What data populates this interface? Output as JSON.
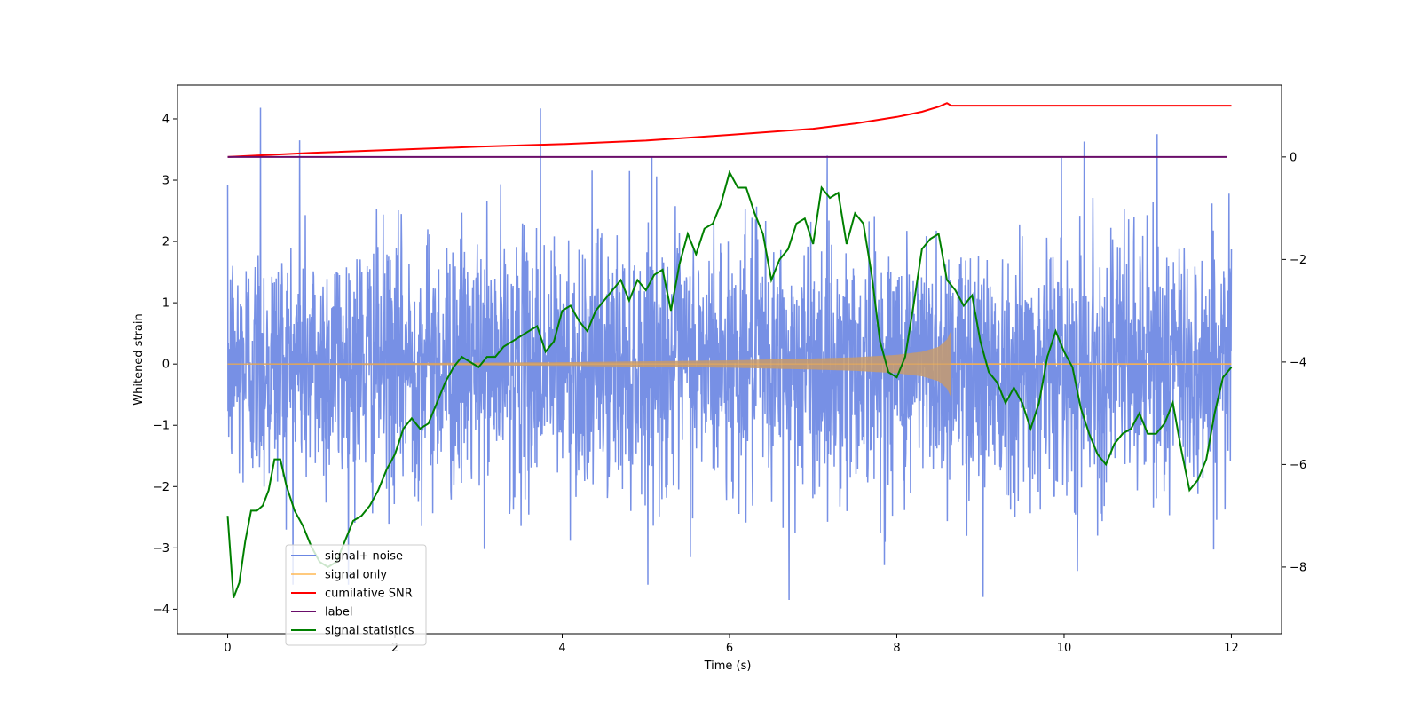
{
  "chart_data": {
    "type": "line",
    "xlabel": "Time (s)",
    "ylabel_left": "Whitened strain",
    "ylabel_right": "",
    "xlim": [
      -0.6,
      12.6
    ],
    "ylim_left": [
      -4.4,
      4.55
    ],
    "ylim_right": [
      -9.3,
      1.4
    ],
    "x_ticks": [
      0,
      2,
      4,
      6,
      8,
      10,
      12
    ],
    "y_ticks_left": [
      -4,
      -3,
      -2,
      -1,
      0,
      1,
      2,
      3,
      4
    ],
    "y_ticks_right": [
      -8,
      -6,
      -4,
      -2,
      0
    ],
    "grid": false,
    "legend_position": "lower-left",
    "series": [
      {
        "name": "signal+ noise",
        "axis": "left",
        "color": "#6b87e3",
        "description_range": [
          -3.9,
          4.2
        ],
        "x_range": [
          0,
          12
        ],
        "notable_peaks": [
          {
            "x": 0.39,
            "y": 4.18
          },
          {
            "x": 0.86,
            "y": 3.65
          },
          {
            "x": 3.74,
            "y": 4.17
          },
          {
            "x": 5.07,
            "y": 3.38
          },
          {
            "x": 6.71,
            "y": -3.85
          },
          {
            "x": 9.03,
            "y": -3.8
          },
          {
            "x": 11.11,
            "y": 3.75
          },
          {
            "x": 10.24,
            "y": 3.63
          }
        ]
      },
      {
        "name": "signal only",
        "axis": "left",
        "color": "#ffb347",
        "x_range": [
          0,
          12
        ],
        "chirp_end_x": 8.65,
        "envelope": [
          [
            0,
            0.01
          ],
          [
            2,
            0.015
          ],
          [
            4,
            0.03
          ],
          [
            5,
            0.045
          ],
          [
            6,
            0.06
          ],
          [
            7,
            0.09
          ],
          [
            7.5,
            0.11
          ],
          [
            8,
            0.15
          ],
          [
            8.3,
            0.2
          ],
          [
            8.5,
            0.28
          ],
          [
            8.6,
            0.4
          ],
          [
            8.65,
            0.55
          ]
        ]
      },
      {
        "name": "cumilative SNR",
        "axis": "right",
        "color": "#ff0000",
        "x": [
          0,
          1,
          2,
          3,
          4,
          5,
          6,
          7,
          7.5,
          8,
          8.3,
          8.5,
          8.6,
          8.65,
          10,
          12
        ],
        "y": [
          0.0,
          0.08,
          0.14,
          0.2,
          0.25,
          0.32,
          0.43,
          0.55,
          0.65,
          0.78,
          0.88,
          0.98,
          1.05,
          1.0,
          1.0,
          1.0
        ]
      },
      {
        "name": "label",
        "axis": "right",
        "color": "#6a0d6a",
        "x": [
          0,
          11.95
        ],
        "y": [
          0.0,
          0.0
        ]
      },
      {
        "name": "signal statistics",
        "axis": "right",
        "color": "#008000",
        "x": [
          0,
          0.07,
          0.14,
          0.21,
          0.28,
          0.35,
          0.42,
          0.49,
          0.56,
          0.63,
          0.7,
          0.8,
          0.9,
          1.0,
          1.1,
          1.2,
          1.3,
          1.4,
          1.5,
          1.6,
          1.7,
          1.8,
          1.9,
          2.0,
          2.1,
          2.2,
          2.3,
          2.4,
          2.5,
          2.6,
          2.7,
          2.8,
          2.9,
          3.0,
          3.1,
          3.2,
          3.3,
          3.4,
          3.5,
          3.6,
          3.7,
          3.8,
          3.9,
          4.0,
          4.1,
          4.2,
          4.3,
          4.4,
          4.5,
          4.6,
          4.7,
          4.8,
          4.9,
          5.0,
          5.1,
          5.2,
          5.3,
          5.4,
          5.5,
          5.6,
          5.7,
          5.8,
          5.9,
          6.0,
          6.1,
          6.2,
          6.3,
          6.4,
          6.5,
          6.6,
          6.7,
          6.8,
          6.9,
          7.0,
          7.1,
          7.2,
          7.3,
          7.4,
          7.5,
          7.6,
          7.7,
          7.8,
          7.9,
          8.0,
          8.1,
          8.2,
          8.3,
          8.4,
          8.5,
          8.6,
          8.7,
          8.8,
          8.9,
          9.0,
          9.1,
          9.2,
          9.3,
          9.4,
          9.5,
          9.6,
          9.7,
          9.8,
          9.9,
          10.0,
          10.1,
          10.2,
          10.3,
          10.4,
          10.5,
          10.6,
          10.7,
          10.8,
          10.9,
          11.0,
          11.1,
          11.2,
          11.3,
          11.4,
          11.5,
          11.6,
          11.7,
          11.8,
          11.9,
          12.0
        ],
        "y": [
          -7.0,
          -8.6,
          -8.3,
          -7.5,
          -6.9,
          -6.9,
          -6.8,
          -6.5,
          -5.9,
          -5.9,
          -6.4,
          -6.9,
          -7.2,
          -7.6,
          -7.9,
          -8.0,
          -7.9,
          -7.5,
          -7.1,
          -7.0,
          -6.8,
          -6.5,
          -6.1,
          -5.8,
          -5.3,
          -5.1,
          -5.3,
          -5.2,
          -4.8,
          -4.4,
          -4.1,
          -3.9,
          -4.0,
          -4.1,
          -3.9,
          -3.9,
          -3.7,
          -3.6,
          -3.5,
          -3.4,
          -3.3,
          -3.8,
          -3.6,
          -3.0,
          -2.9,
          -3.2,
          -3.4,
          -3.0,
          -2.8,
          -2.6,
          -2.4,
          -2.8,
          -2.4,
          -2.6,
          -2.3,
          -2.2,
          -3.0,
          -2.1,
          -1.5,
          -1.9,
          -1.4,
          -1.3,
          -0.9,
          -0.3,
          -0.6,
          -0.6,
          -1.1,
          -1.5,
          -2.4,
          -2.0,
          -1.8,
          -1.3,
          -1.2,
          -1.7,
          -0.6,
          -0.8,
          -0.7,
          -1.7,
          -1.1,
          -1.3,
          -2.3,
          -3.6,
          -4.2,
          -4.3,
          -3.9,
          -2.9,
          -1.8,
          -1.6,
          -1.5,
          -2.4,
          -2.6,
          -2.9,
          -2.7,
          -3.6,
          -4.2,
          -4.4,
          -4.8,
          -4.5,
          -4.8,
          -5.3,
          -4.8,
          -3.9,
          -3.4,
          -3.8,
          -4.1,
          -4.9,
          -5.4,
          -5.8,
          -6.0,
          -5.6,
          -5.4,
          -5.3,
          -5.0,
          -5.4,
          -5.4,
          -5.2,
          -4.8,
          -5.7,
          -6.5,
          -6.3,
          -5.9,
          -5.0,
          -4.3,
          -4.1
        ]
      }
    ]
  }
}
